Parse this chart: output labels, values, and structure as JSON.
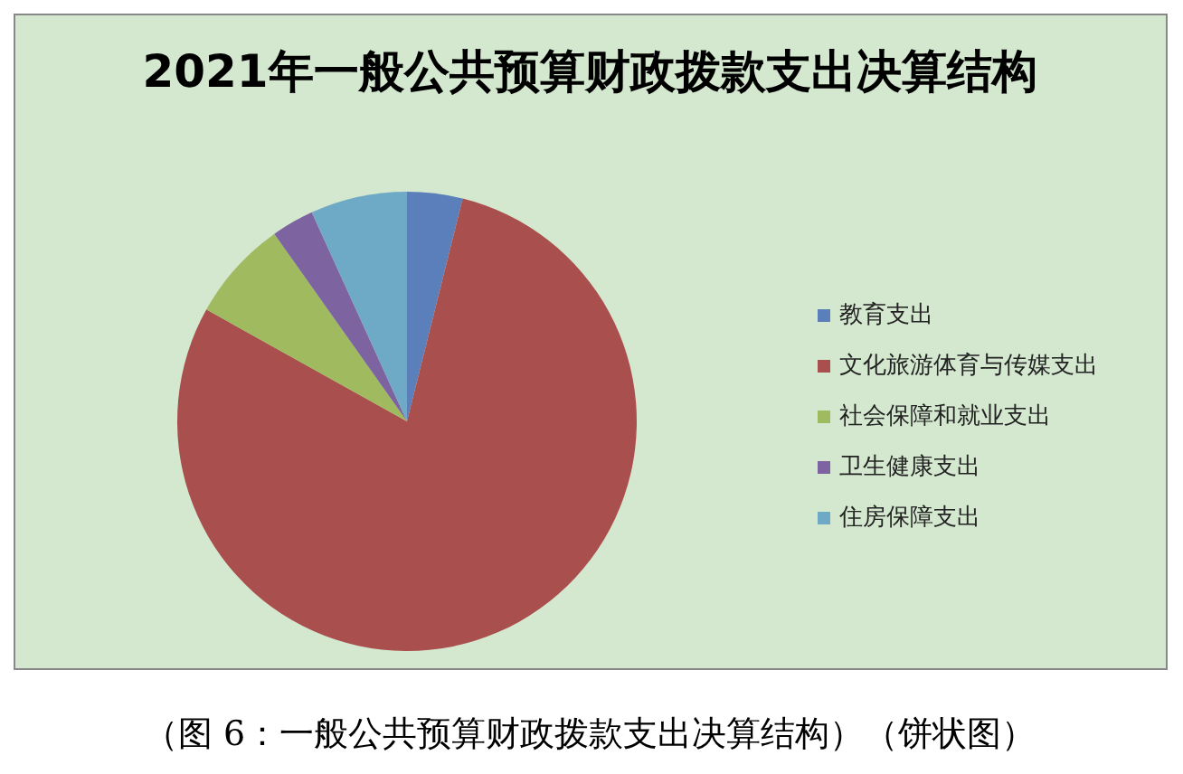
{
  "chart_data": {
    "type": "pie",
    "title": "2021年一般公共预算财政拨款支出决算结构",
    "categories": [
      "教育支出",
      "文化旅游体育与传媒支出",
      "社会保障和就业支出",
      "卫生健康支出",
      "住房保障支出"
    ],
    "values": [
      3.9,
      79.2,
      7.1,
      3.0,
      6.8
    ],
    "colors": [
      "#5b7fba",
      "#a94f4d",
      "#9fba5f",
      "#7d64a0",
      "#6eaac6"
    ],
    "legend": "right",
    "annotations": [
      "（图 6：一般公共预算财政拨款支出决算结构）（饼状图）"
    ]
  }
}
